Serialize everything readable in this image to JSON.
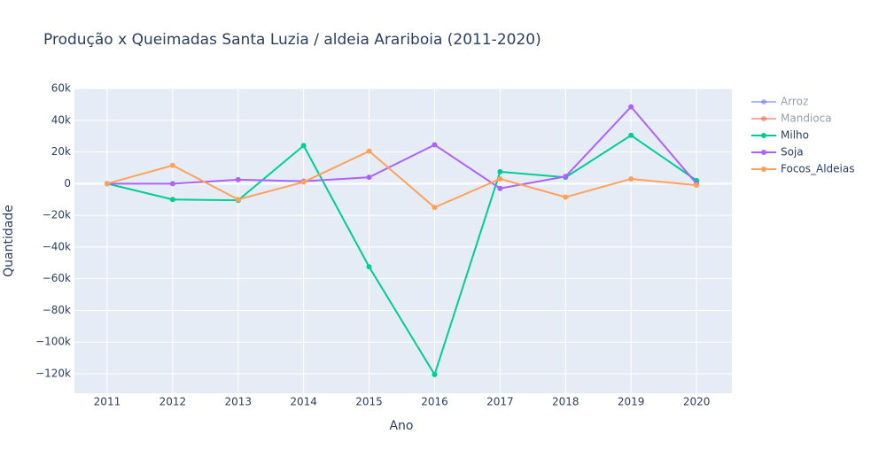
{
  "chart_data": {
    "type": "line",
    "title": "Produção x Queimadas Santa Luzia / aldeia Arariboia  (2011-2020)",
    "x_label": "Ano",
    "y_label": "Quantidade",
    "x": [
      2011,
      2012,
      2013,
      2014,
      2015,
      2016,
      2017,
      2018,
      2019,
      2020
    ],
    "xlim": [
      2010.5,
      2020.54
    ],
    "xticks": [
      2011,
      2012,
      2013,
      2014,
      2015,
      2016,
      2017,
      2018,
      2019,
      2020
    ],
    "ylim": [
      -132300,
      60000
    ],
    "yticks": [
      {
        "value": 60000,
        "label": "60k"
      },
      {
        "value": 40000,
        "label": "40k"
      },
      {
        "value": 20000,
        "label": "20k"
      },
      0,
      {
        "value": -20000,
        "label": "−20k"
      },
      {
        "value": -40000,
        "label": "−40k"
      },
      {
        "value": -60000,
        "label": "−60k"
      },
      {
        "value": -80000,
        "label": "−80k"
      },
      {
        "value": -100000,
        "label": "−100k"
      },
      {
        "value": -120000,
        "label": "−120k"
      }
    ],
    "grid": true,
    "legend": "right",
    "series": [
      {
        "name": "Arroz",
        "color": "#636efa",
        "visible": "legendonly",
        "values": [
          null,
          null,
          null,
          null,
          null,
          null,
          null,
          null,
          null,
          null
        ]
      },
      {
        "name": "Mandioca",
        "color": "#EF553B",
        "visible": "legendonly",
        "values": [
          null,
          null,
          null,
          null,
          null,
          null,
          null,
          null,
          null,
          null
        ]
      },
      {
        "name": "Milho",
        "color": "#00cc96",
        "values": [
          0,
          -10000,
          -10500,
          24000,
          -52500,
          -120500,
          7500,
          4000,
          30500,
          2000
        ]
      },
      {
        "name": "Soja",
        "color": "#ab63fa",
        "values": [
          0,
          0,
          2500,
          1500,
          4000,
          24500,
          -3000,
          4500,
          48500,
          0
        ]
      },
      {
        "name": "Focos_Aldeias",
        "color": "#FFA15A",
        "values": [
          0,
          11500,
          -10000,
          1000,
          20500,
          -15000,
          3000,
          -8500,
          3000,
          -1000
        ]
      }
    ]
  }
}
